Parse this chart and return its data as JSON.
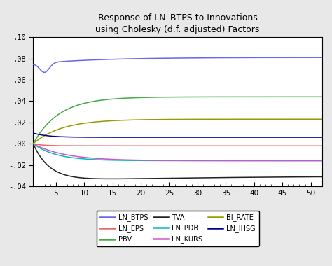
{
  "title": "Response of LN_BTPS to Innovations\nusing Cholesky (d.f. adjusted) Factors",
  "xlim": [
    1,
    52
  ],
  "ylim": [
    -0.04,
    0.1
  ],
  "xticks": [
    5,
    10,
    15,
    20,
    25,
    30,
    35,
    40,
    45,
    50
  ],
  "yticks": [
    -0.04,
    -0.02,
    0.0,
    0.02,
    0.04,
    0.06,
    0.08,
    0.1
  ],
  "ytick_labels": [
    "-.04",
    "-.02",
    ".00",
    ".02",
    ".04",
    ".06",
    ".08",
    ".10"
  ],
  "series": {
    "LN_BTPS": {
      "color": "#6666ee"
    },
    "LN_EPS": {
      "color": "#ee6666"
    },
    "PBV": {
      "color": "#44aa44"
    },
    "TVA": {
      "color": "#222222"
    },
    "LN_PDB": {
      "color": "#00bbbb"
    },
    "LN_KURS": {
      "color": "#cc55cc"
    },
    "BI_RATE": {
      "color": "#999900"
    },
    "LN_IHSG": {
      "color": "#000088"
    }
  },
  "legend_order": [
    [
      "LN_BTPS",
      "#6666ee"
    ],
    [
      "LN_EPS",
      "#ee6666"
    ],
    [
      "PBV",
      "#44aa44"
    ],
    [
      "TVA",
      "#222222"
    ],
    [
      "LN_PDB",
      "#00bbbb"
    ],
    [
      "LN_KURS",
      "#cc55cc"
    ],
    [
      "BI_RATE",
      "#999900"
    ],
    [
      "LN_IHSG",
      "#000088"
    ]
  ],
  "title_fontsize": 9,
  "fig_facecolor": "#e8e8e8",
  "ax_facecolor": "#ffffff"
}
